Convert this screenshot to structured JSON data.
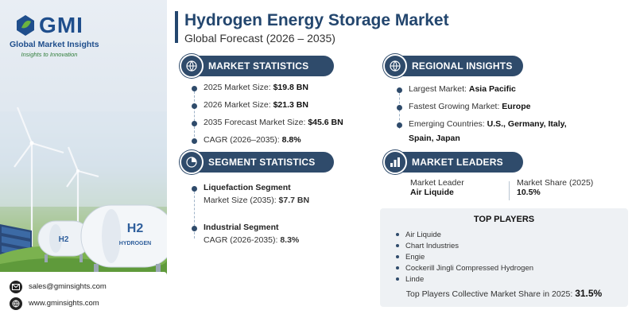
{
  "brand": {
    "logo_text": "GMI",
    "name": "Global Market Insights",
    "tagline": "Insights to Innovation"
  },
  "header": {
    "title": "Hydrogen Energy Storage Market",
    "subtitle": "Global Forecast (2026 – 2035)"
  },
  "market_statistics": {
    "heading": "MARKET STATISTICS",
    "rows": [
      {
        "label": "2025 Market Size:",
        "value": "$19.8 BN"
      },
      {
        "label": "2026 Market Size:",
        "value": "$21.3 BN"
      },
      {
        "label": "2035 Forecast Market Size:",
        "value": "$45.6 BN"
      },
      {
        "label": "CAGR (2026–2035):",
        "value": "8.8%"
      }
    ]
  },
  "segment_statistics": {
    "heading": "SEGMENT STATISTICS",
    "segments": [
      {
        "name": "Liquefaction Segment",
        "label": "Market Size (2035):",
        "value": "$7.7 BN"
      },
      {
        "name": "Industrial Segment",
        "label": "CAGR (2026-2035):",
        "value": "8.3%"
      }
    ]
  },
  "regional_insights": {
    "heading": "REGIONAL INSIGHTS",
    "largest_label": "Largest Market:",
    "largest_value": "Asia Pacific",
    "fastest_label": "Fastest Growing Market:",
    "fastest_value": "Europe",
    "emerging_label": "Emerging Countries:",
    "emerging_value_1": "U.S., Germany, Italy,",
    "emerging_value_2": "Spain, Japan"
  },
  "market_leaders": {
    "heading": "MARKET LEADERS",
    "leader_label": "Market Leader",
    "leader_value": "Air Liquide",
    "share_label": "Market Share (2025)",
    "share_value": "10.5%"
  },
  "top_players": {
    "heading": "TOP PLAYERS",
    "items": [
      "Air Liquide",
      "Chart Industries",
      "Engie",
      "Cockerill Jingli Compressed Hydrogen",
      "Linde"
    ],
    "footer_label": "Top Players Collective Market Share in 2025:",
    "footer_value": "31.5%"
  },
  "contact": {
    "email": "sales@gminsights.com",
    "website": "www.gminsights.com"
  },
  "tanks": {
    "small_label": "H2",
    "large_label": "H2",
    "large_caption": "HYDROGEN"
  },
  "colors": {
    "navy": "#23466e",
    "pill": "#2f4b6b",
    "accent_green": "#2f7d3a"
  },
  "icons": [
    "globe-icon",
    "chart-icon",
    "segment-icon",
    "leaders-icon",
    "email-icon",
    "web-icon"
  ]
}
